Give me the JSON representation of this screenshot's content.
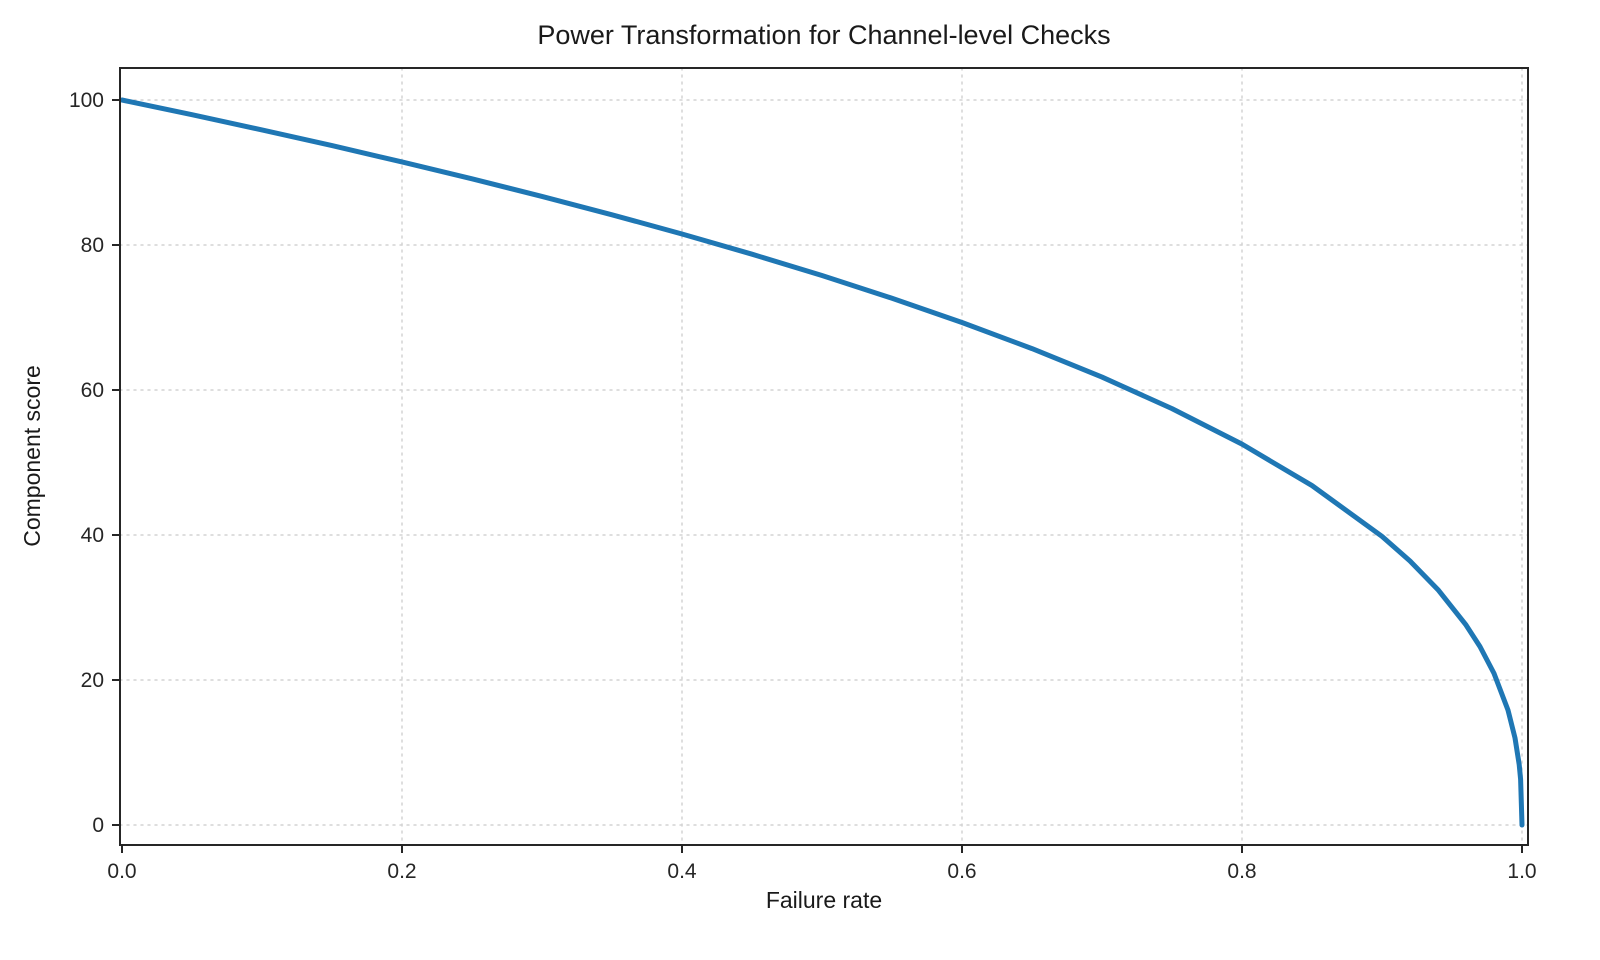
{
  "chart_data": {
    "type": "line",
    "title": "Power Transformation for Channel-level Checks",
    "xlabel": "Failure rate",
    "ylabel": "Component score",
    "xlim": [
      0.0,
      1.0
    ],
    "ylim": [
      0,
      100
    ],
    "grid": true,
    "legend": "none",
    "line_color": "#1f77b4",
    "line_width": 5,
    "spine_color": "#262626",
    "grid_color": "#d3d3d3",
    "tick_label_color": "#262626",
    "xticks": [
      {
        "value": 0.0,
        "label": "0.0"
      },
      {
        "value": 0.2,
        "label": "0.2"
      },
      {
        "value": 0.4,
        "label": "0.4"
      },
      {
        "value": 0.6,
        "label": "0.6"
      },
      {
        "value": 0.8,
        "label": "0.8"
      },
      {
        "value": 1.0,
        "label": "1.0"
      }
    ],
    "yticks": [
      {
        "value": 0,
        "label": "0"
      },
      {
        "value": 20,
        "label": "20"
      },
      {
        "value": 40,
        "label": "40"
      },
      {
        "value": 60,
        "label": "60"
      },
      {
        "value": 80,
        "label": "80"
      },
      {
        "value": 100,
        "label": "100"
      }
    ],
    "series": [
      {
        "name": "component-score-curve",
        "x": [
          0,
          0.05,
          0.1,
          0.15,
          0.2,
          0.25,
          0.3,
          0.35,
          0.4,
          0.45,
          0.5,
          0.55,
          0.6,
          0.65,
          0.7,
          0.75,
          0.8,
          0.85,
          0.9,
          0.92,
          0.94,
          0.96,
          0.97,
          0.98,
          0.99,
          0.995,
          0.998,
          0.999,
          1.0
        ],
        "y": [
          100,
          97.97,
          95.87,
          93.71,
          91.46,
          89.13,
          86.7,
          84.17,
          81.52,
          78.73,
          75.79,
          72.66,
          69.31,
          65.71,
          61.78,
          57.43,
          52.53,
          46.82,
          39.81,
          36.41,
          32.45,
          27.59,
          24.6,
          20.91,
          15.85,
          12.01,
          8.33,
          6.31,
          0
        ]
      }
    ]
  }
}
